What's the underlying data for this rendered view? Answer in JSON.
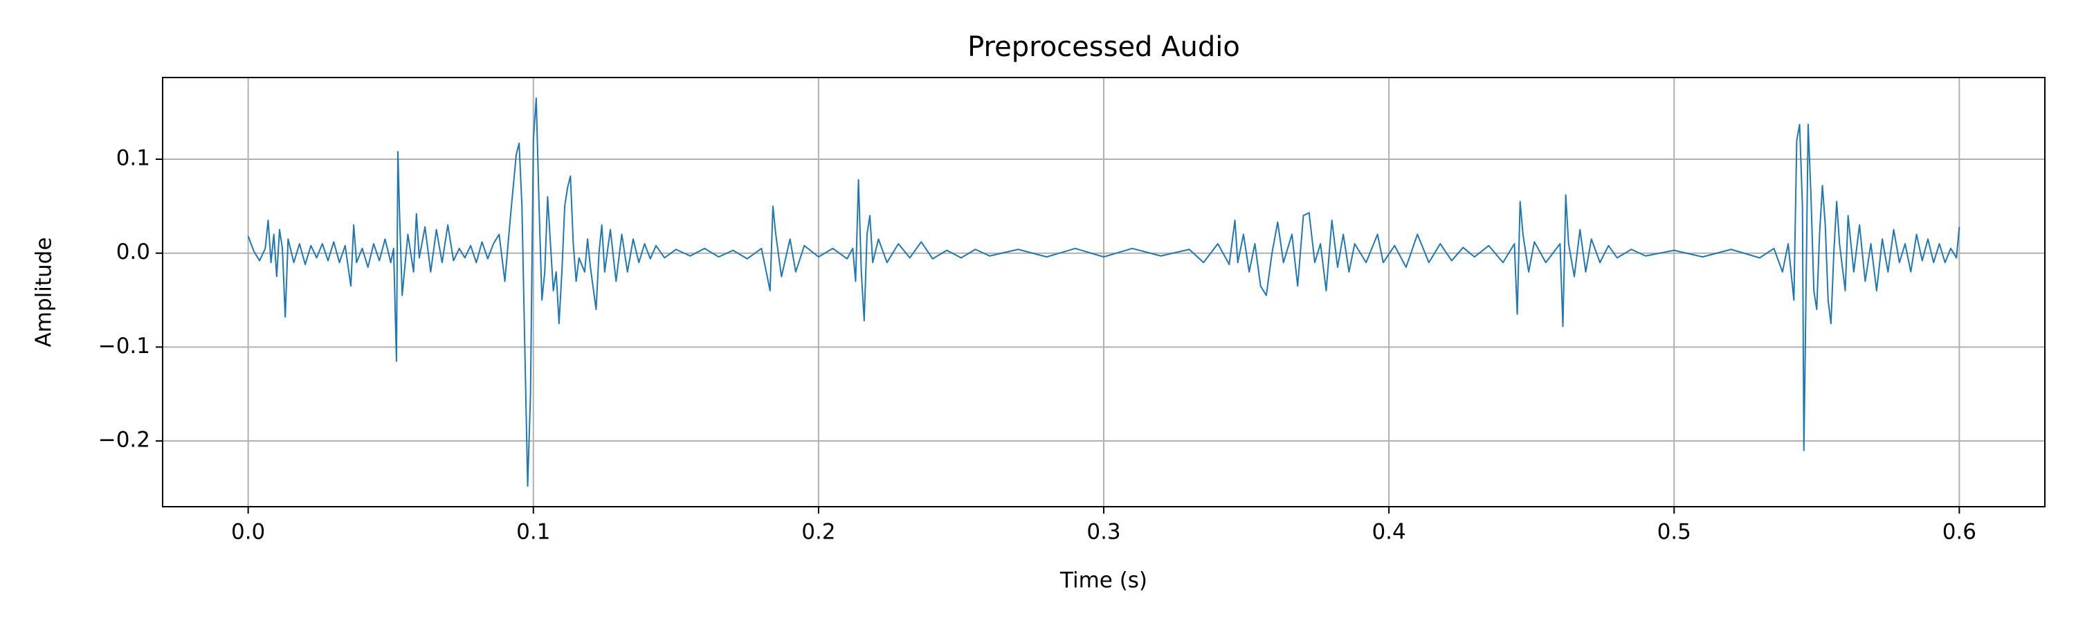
{
  "chart_data": {
    "type": "line",
    "title": "Preprocessed Audio",
    "xlabel": "Time (s)",
    "ylabel": "Amplitude",
    "x": [
      0.0,
      0.002,
      0.004,
      0.006,
      0.007,
      0.008,
      0.009,
      0.01,
      0.011,
      0.012,
      0.013,
      0.014,
      0.016,
      0.018,
      0.02,
      0.022,
      0.024,
      0.026,
      0.028,
      0.03,
      0.032,
      0.034,
      0.036,
      0.037,
      0.038,
      0.04,
      0.042,
      0.044,
      0.046,
      0.048,
      0.05,
      0.051,
      0.052,
      0.0525,
      0.053,
      0.054,
      0.056,
      0.058,
      0.059,
      0.06,
      0.062,
      0.064,
      0.066,
      0.068,
      0.07,
      0.072,
      0.074,
      0.076,
      0.078,
      0.08,
      0.082,
      0.084,
      0.086,
      0.088,
      0.09,
      0.092,
      0.094,
      0.095,
      0.096,
      0.097,
      0.098,
      0.099,
      0.1,
      0.101,
      0.102,
      0.103,
      0.104,
      0.105,
      0.106,
      0.107,
      0.108,
      0.109,
      0.11,
      0.111,
      0.112,
      0.113,
      0.114,
      0.115,
      0.116,
      0.118,
      0.119,
      0.12,
      0.122,
      0.123,
      0.124,
      0.125,
      0.127,
      0.129,
      0.131,
      0.133,
      0.135,
      0.137,
      0.139,
      0.141,
      0.143,
      0.146,
      0.15,
      0.155,
      0.16,
      0.165,
      0.17,
      0.175,
      0.18,
      0.183,
      0.184,
      0.185,
      0.187,
      0.19,
      0.192,
      0.195,
      0.2,
      0.205,
      0.21,
      0.212,
      0.213,
      0.214,
      0.215,
      0.216,
      0.217,
      0.218,
      0.219,
      0.221,
      0.224,
      0.228,
      0.232,
      0.236,
      0.24,
      0.245,
      0.25,
      0.255,
      0.26,
      0.27,
      0.28,
      0.29,
      0.3,
      0.31,
      0.32,
      0.33,
      0.335,
      0.34,
      0.344,
      0.346,
      0.347,
      0.349,
      0.351,
      0.353,
      0.355,
      0.357,
      0.359,
      0.361,
      0.363,
      0.366,
      0.368,
      0.37,
      0.372,
      0.374,
      0.376,
      0.378,
      0.38,
      0.382,
      0.384,
      0.386,
      0.388,
      0.392,
      0.396,
      0.398,
      0.402,
      0.406,
      0.41,
      0.414,
      0.418,
      0.422,
      0.426,
      0.43,
      0.435,
      0.44,
      0.444,
      0.445,
      0.446,
      0.447,
      0.449,
      0.451,
      0.455,
      0.46,
      0.461,
      0.462,
      0.463,
      0.465,
      0.467,
      0.469,
      0.471,
      0.474,
      0.477,
      0.48,
      0.485,
      0.49,
      0.5,
      0.51,
      0.52,
      0.53,
      0.535,
      0.538,
      0.54,
      0.542,
      0.543,
      0.544,
      0.545,
      0.5455,
      0.546,
      0.547,
      0.548,
      0.549,
      0.55,
      0.551,
      0.552,
      0.553,
      0.554,
      0.555,
      0.556,
      0.557,
      0.558,
      0.56,
      0.561,
      0.563,
      0.565,
      0.567,
      0.569,
      0.571,
      0.573,
      0.575,
      0.577,
      0.579,
      0.581,
      0.583,
      0.585,
      0.587,
      0.589,
      0.591,
      0.593,
      0.595,
      0.597,
      0.599,
      0.6
    ],
    "series": [
      {
        "color": "#1f77b4",
        "values": [
          0.018,
          0.002,
          -0.008,
          0.005,
          0.035,
          -0.01,
          0.02,
          -0.025,
          0.025,
          0.005,
          -0.068,
          0.015,
          -0.01,
          0.01,
          -0.012,
          0.008,
          -0.005,
          0.01,
          -0.008,
          0.012,
          -0.01,
          0.008,
          -0.035,
          0.03,
          -0.01,
          0.005,
          -0.015,
          0.01,
          -0.008,
          0.015,
          -0.01,
          0.005,
          -0.115,
          0.108,
          0.05,
          -0.045,
          0.02,
          -0.02,
          0.042,
          -0.005,
          0.028,
          -0.02,
          0.025,
          -0.01,
          0.03,
          -0.008,
          0.005,
          -0.005,
          0.008,
          -0.01,
          0.012,
          -0.006,
          0.01,
          0.02,
          -0.03,
          0.04,
          0.105,
          0.117,
          0.05,
          -0.1,
          -0.248,
          -0.15,
          0.12,
          0.165,
          0.05,
          -0.05,
          -0.02,
          0.06,
          0.01,
          -0.04,
          -0.02,
          -0.075,
          -0.02,
          0.05,
          0.07,
          0.082,
          0.01,
          -0.03,
          -0.005,
          -0.02,
          0.015,
          -0.015,
          -0.06,
          0.0,
          0.03,
          -0.02,
          0.025,
          -0.03,
          0.02,
          -0.02,
          0.015,
          -0.01,
          0.01,
          -0.006,
          0.008,
          -0.005,
          0.004,
          -0.003,
          0.005,
          -0.004,
          0.003,
          -0.006,
          0.005,
          -0.04,
          0.05,
          0.02,
          -0.025,
          0.015,
          -0.02,
          0.008,
          -0.004,
          0.005,
          -0.006,
          0.005,
          -0.03,
          0.078,
          -0.02,
          -0.072,
          0.02,
          0.04,
          -0.01,
          0.015,
          -0.01,
          0.01,
          -0.005,
          0.012,
          -0.006,
          0.003,
          -0.005,
          0.004,
          -0.003,
          0.004,
          -0.004,
          0.005,
          -0.004,
          0.005,
          -0.003,
          0.004,
          -0.01,
          0.01,
          -0.012,
          0.035,
          -0.01,
          0.02,
          -0.02,
          0.01,
          -0.035,
          -0.045,
          0.0,
          0.033,
          -0.01,
          0.02,
          -0.035,
          0.04,
          0.043,
          -0.01,
          0.01,
          -0.04,
          0.035,
          -0.015,
          0.02,
          -0.02,
          0.01,
          -0.01,
          0.02,
          -0.01,
          0.008,
          -0.015,
          0.02,
          -0.01,
          0.01,
          -0.008,
          0.006,
          -0.004,
          0.008,
          -0.01,
          0.01,
          -0.065,
          0.055,
          0.02,
          -0.02,
          0.012,
          -0.01,
          0.01,
          -0.078,
          0.062,
          0.01,
          -0.025,
          0.025,
          -0.02,
          0.015,
          -0.01,
          0.008,
          -0.005,
          0.004,
          -0.003,
          0.003,
          -0.004,
          0.004,
          -0.005,
          0.005,
          -0.02,
          0.01,
          -0.05,
          0.12,
          0.137,
          0.05,
          -0.21,
          -0.1,
          0.137,
          0.06,
          -0.04,
          -0.06,
          0.02,
          0.072,
          0.03,
          -0.05,
          -0.075,
          0.0,
          0.055,
          0.01,
          -0.04,
          0.04,
          -0.02,
          0.03,
          -0.03,
          0.01,
          -0.04,
          0.015,
          -0.02,
          0.025,
          -0.01,
          0.01,
          -0.02,
          0.02,
          -0.008,
          0.015,
          -0.01,
          0.01,
          -0.01,
          0.005,
          -0.005,
          0.028
        ]
      }
    ],
    "xlim": [
      -0.03,
      0.63
    ],
    "ylim": [
      -0.27,
      0.187
    ],
    "xticks": [
      {
        "value": 0,
        "label": "0.0"
      },
      0.1,
      0.2,
      0.3,
      0.4,
      0.5,
      0.6
    ],
    "yticks": [
      {
        "value": -0.2,
        "label": "−0.2"
      },
      {
        "value": -0.1,
        "label": "−0.1"
      },
      {
        "value": 0,
        "label": "0.0"
      },
      0.1
    ],
    "grid": true
  }
}
